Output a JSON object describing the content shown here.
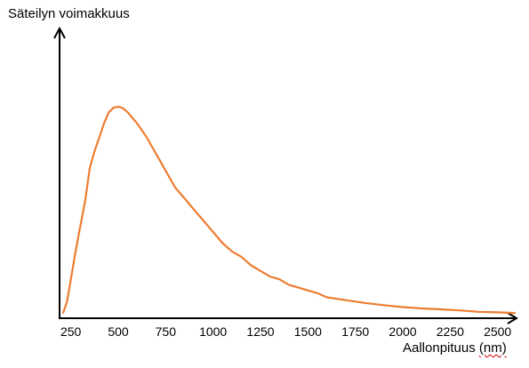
{
  "chart_data": {
    "type": "line",
    "xlabel": "Aallonpituus",
    "xlabel_unit": "(nm)",
    "ylabel": "Säteilyn voimakkuus",
    "x_ticks": [
      250,
      500,
      750,
      1000,
      1250,
      1500,
      1750,
      2000,
      2250,
      2500
    ],
    "xlim": [
      200,
      2600
    ],
    "ylim": [
      0,
      1
    ],
    "y_ticks_shown": false,
    "grid": false,
    "legend": "none",
    "series": [
      {
        "color": "#ed7d31",
        "points": [
          [
            210,
            0.02
          ],
          [
            230,
            0.06
          ],
          [
            250,
            0.14
          ],
          [
            275,
            0.24
          ],
          [
            300,
            0.33
          ],
          [
            325,
            0.42
          ],
          [
            350,
            0.54
          ],
          [
            375,
            0.6
          ],
          [
            400,
            0.65
          ],
          [
            425,
            0.7
          ],
          [
            450,
            0.74
          ],
          [
            475,
            0.757
          ],
          [
            500,
            0.76
          ],
          [
            525,
            0.755
          ],
          [
            550,
            0.74
          ],
          [
            600,
            0.7
          ],
          [
            650,
            0.65
          ],
          [
            700,
            0.59
          ],
          [
            750,
            0.53
          ],
          [
            800,
            0.47
          ],
          [
            850,
            0.43
          ],
          [
            900,
            0.39
          ],
          [
            950,
            0.35
          ],
          [
            1000,
            0.31
          ],
          [
            1050,
            0.27
          ],
          [
            1100,
            0.24
          ],
          [
            1150,
            0.22
          ],
          [
            1200,
            0.19
          ],
          [
            1250,
            0.17
          ],
          [
            1300,
            0.15
          ],
          [
            1350,
            0.14
          ],
          [
            1400,
            0.12
          ],
          [
            1450,
            0.11
          ],
          [
            1500,
            0.1
          ],
          [
            1550,
            0.09
          ],
          [
            1600,
            0.075
          ],
          [
            1700,
            0.065
          ],
          [
            1800,
            0.055
          ],
          [
            1900,
            0.047
          ],
          [
            2000,
            0.04
          ],
          [
            2100,
            0.035
          ],
          [
            2200,
            0.032
          ],
          [
            2300,
            0.028
          ],
          [
            2400,
            0.023
          ],
          [
            2500,
            0.021
          ],
          [
            2590,
            0.019
          ]
        ]
      }
    ]
  }
}
